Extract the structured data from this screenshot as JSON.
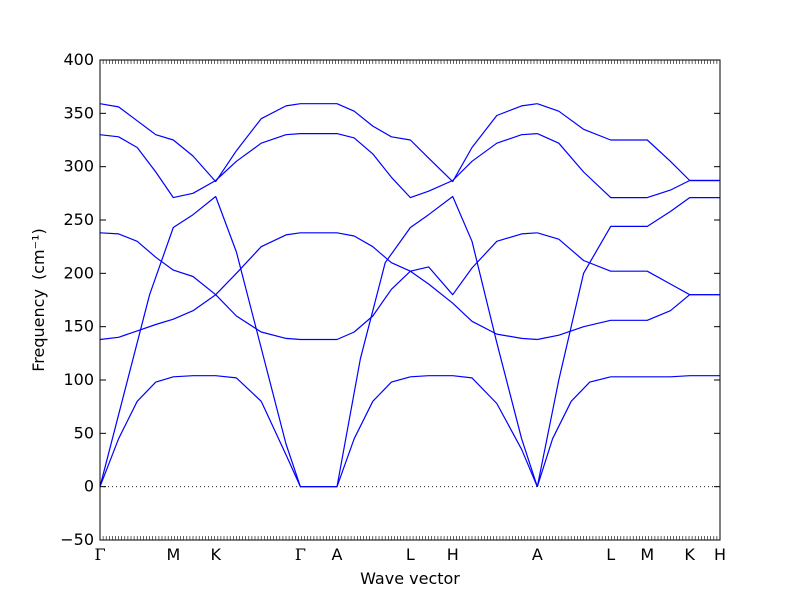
{
  "chart_data": {
    "type": "line",
    "title": "",
    "xlabel": "Wave vector",
    "ylabel": "Frequency",
    "ylabel_unit": "(cm⁻¹)",
    "ylim": [
      -50,
      400
    ],
    "yticks": [
      -50,
      0,
      50,
      100,
      150,
      200,
      250,
      300,
      350,
      400
    ],
    "zero_line": {
      "y": 0,
      "style": "dotted"
    },
    "grid": false,
    "line_color": "#0000ff",
    "high_symmetry_points": [
      {
        "label": "Γ",
        "q": 0.0
      },
      {
        "label": "M",
        "q": 0.1183
      },
      {
        "label": "K",
        "q": 0.1866
      },
      {
        "label": "Γ",
        "q": 0.3232
      },
      {
        "label": "A",
        "q": 0.3823
      },
      {
        "label": "L",
        "q": 0.5006
      },
      {
        "label": "H",
        "q": 0.5689
      },
      {
        "label": "A",
        "q": 0.7054
      },
      {
        "label": "L",
        "q": 0.8237
      },
      {
        "label": "M",
        "q": 0.8828
      },
      {
        "label": "K",
        "q": 0.9511
      },
      {
        "label": "H",
        "q": 1.0
      }
    ],
    "series": [
      {
        "x": [
          0,
          0.03,
          0.06,
          0.09,
          0.1183,
          0.15,
          0.1866,
          0.22,
          0.26,
          0.3,
          0.3232,
          0.3823,
          0.41,
          0.44,
          0.47,
          0.5006,
          0.53,
          0.5689,
          0.6,
          0.64,
          0.68,
          0.7054
        ],
        "y": [
          0,
          45,
          80,
          98,
          103,
          104,
          104,
          102,
          80,
          30,
          0,
          0,
          45,
          80,
          98,
          103,
          104,
          104,
          102,
          78,
          35,
          0
        ]
      },
      {
        "x": [
          0,
          0.04,
          0.08,
          0.1183,
          0.15,
          0.1866,
          0.22,
          0.26,
          0.3,
          0.3232,
          0.3823,
          0.42,
          0.46,
          0.5006,
          0.53,
          0.5689,
          0.6,
          0.64,
          0.68,
          0.7054
        ],
        "y": [
          0,
          90,
          180,
          243,
          255,
          272,
          220,
          130,
          40,
          0,
          0,
          120,
          210,
          243,
          255,
          272,
          230,
          135,
          45,
          0
        ]
      },
      {
        "x": [
          0,
          0.03,
          0.06,
          0.09,
          0.1183,
          0.15,
          0.1866,
          0.22,
          0.26,
          0.3,
          0.3232,
          0.3823,
          0.41,
          0.44,
          0.47,
          0.5006,
          0.53,
          0.5689,
          0.6,
          0.64,
          0.68,
          0.7054
        ],
        "y": [
          138,
          140,
          146,
          152,
          157,
          165,
          180,
          200,
          225,
          236,
          238,
          238,
          235,
          225,
          210,
          202,
          190,
          172,
          155,
          143,
          139,
          138
        ]
      },
      {
        "x": [
          0,
          0.03,
          0.06,
          0.09,
          0.1183,
          0.15,
          0.1866,
          0.22,
          0.26,
          0.3,
          0.3232,
          0.3823,
          0.41,
          0.44,
          0.47,
          0.5006,
          0.53,
          0.5689,
          0.6,
          0.64,
          0.68,
          0.7054
        ],
        "y": [
          238,
          237,
          230,
          215,
          203,
          197,
          180,
          160,
          145,
          139,
          138,
          138,
          145,
          160,
          185,
          202,
          206,
          180,
          205,
          230,
          237,
          238
        ]
      },
      {
        "x": [
          0,
          0.03,
          0.06,
          0.09,
          0.1183,
          0.15,
          0.1866,
          0.22,
          0.26,
          0.3,
          0.3232,
          0.3823,
          0.41,
          0.44,
          0.47,
          0.5006,
          0.53,
          0.5689,
          0.6,
          0.64,
          0.68,
          0.7054
        ],
        "y": [
          330,
          328,
          318,
          295,
          271,
          275,
          287,
          305,
          322,
          330,
          331,
          331,
          327,
          312,
          290,
          271,
          277,
          287,
          305,
          322,
          330,
          331
        ]
      },
      {
        "x": [
          0,
          0.03,
          0.06,
          0.09,
          0.1183,
          0.15,
          0.1866,
          0.22,
          0.26,
          0.3,
          0.3232,
          0.3823,
          0.41,
          0.44,
          0.47,
          0.5006,
          0.53,
          0.5689,
          0.6,
          0.64,
          0.68,
          0.7054
        ],
        "y": [
          359,
          356,
          343,
          330,
          325,
          310,
          286,
          315,
          345,
          357,
          359,
          359,
          352,
          338,
          328,
          325,
          308,
          286,
          318,
          348,
          357,
          359
        ]
      },
      {
        "x": [
          0.7054,
          0.73,
          0.76,
          0.79,
          0.8237,
          0.8828,
          0.92,
          0.9511,
          1.0
        ],
        "y": [
          0,
          45,
          80,
          98,
          103,
          103,
          103,
          104,
          104
        ]
      },
      {
        "x": [
          0.7054,
          0.74,
          0.78,
          0.8237,
          0.8828,
          0.92,
          0.9511,
          1.0
        ],
        "y": [
          0,
          100,
          200,
          244,
          244,
          258,
          271,
          271
        ]
      },
      {
        "x": [
          0.7054,
          0.74,
          0.78,
          0.8237,
          0.8828,
          0.92,
          0.9511,
          1.0
        ],
        "y": [
          238,
          232,
          212,
          202,
          202,
          190,
          180,
          180
        ]
      },
      {
        "x": [
          0.7054,
          0.74,
          0.78,
          0.8237,
          0.8828,
          0.92,
          0.9511,
          1.0
        ],
        "y": [
          138,
          142,
          150,
          156,
          156,
          165,
          180,
          180
        ]
      },
      {
        "x": [
          0.7054,
          0.74,
          0.78,
          0.8237,
          0.8828,
          0.92,
          0.9511,
          1.0
        ],
        "y": [
          331,
          322,
          295,
          271,
          271,
          278,
          287,
          287
        ]
      },
      {
        "x": [
          0.7054,
          0.74,
          0.78,
          0.8237,
          0.8828,
          0.92,
          0.9511,
          1.0
        ],
        "y": [
          359,
          352,
          335,
          325,
          325,
          305,
          287,
          287
        ]
      }
    ]
  }
}
